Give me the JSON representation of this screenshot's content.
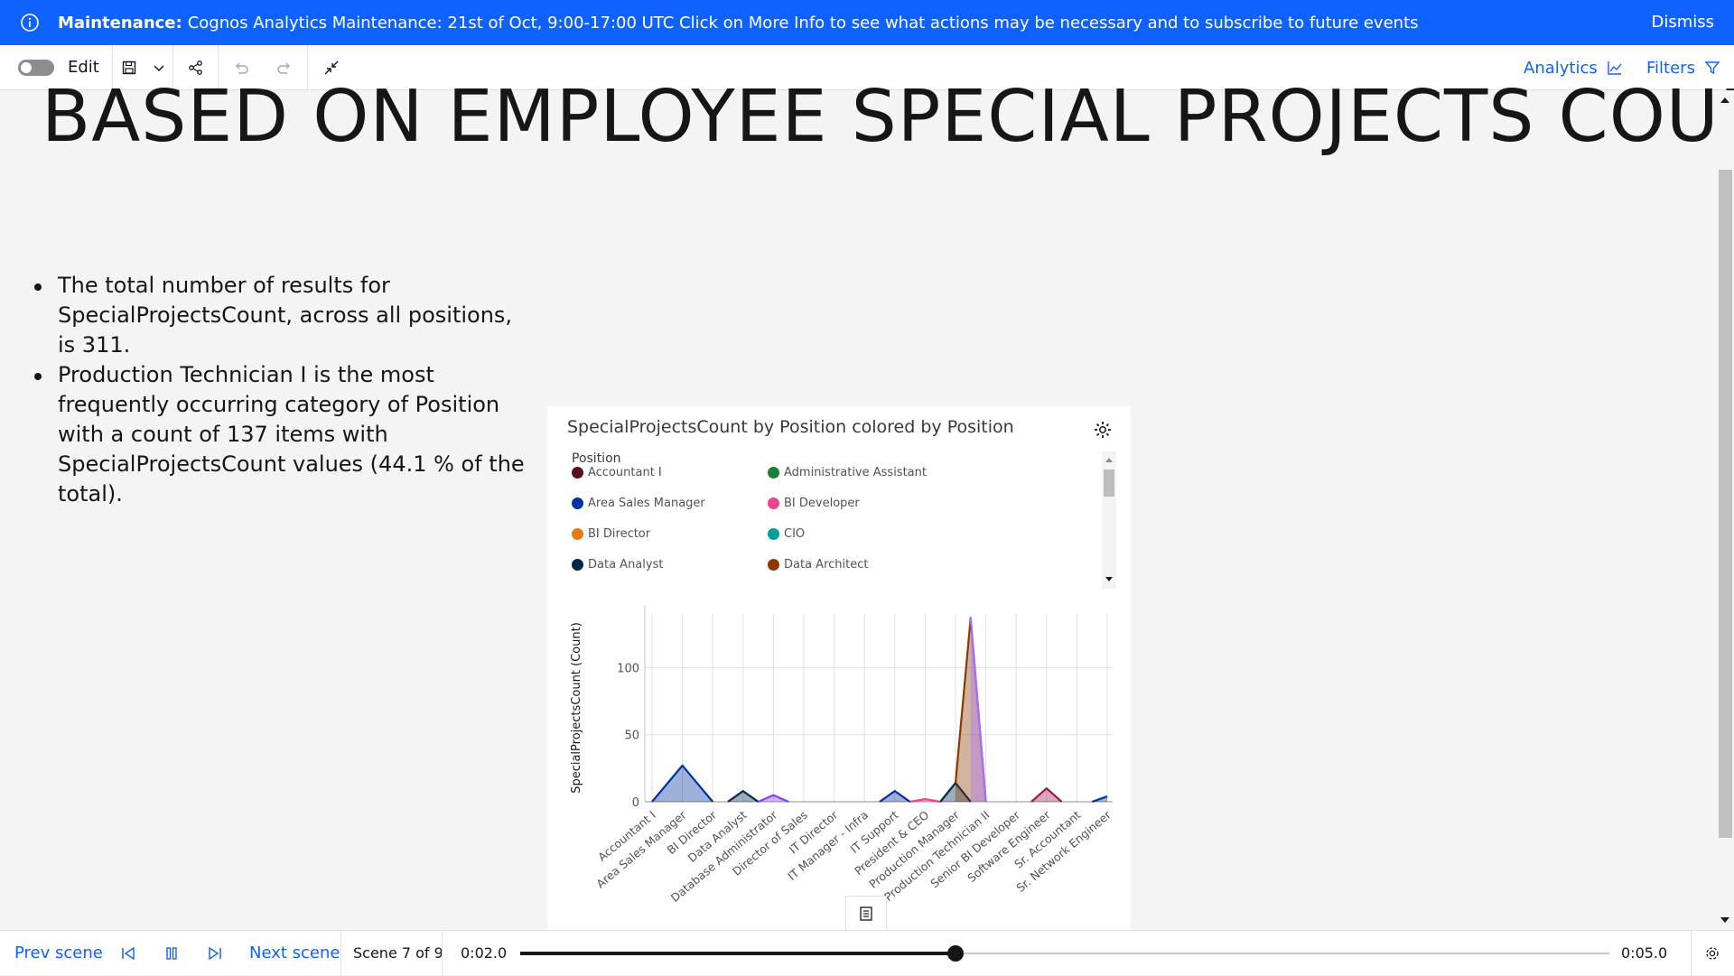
{
  "banner": {
    "label": "Maintenance:",
    "message": "Cognos Analytics Maintenance: 21st of Oct, 9:00-17:00 UTC Click on More Info to see what actions may be necessary and to subscribe to future events",
    "dismiss_label": "Dismiss"
  },
  "toolbar": {
    "edit_label": "Edit",
    "analytics_label": "Analytics",
    "filters_label": "Filters"
  },
  "page": {
    "title": "BASED ON EMPLOYEE SPECIAL PROJECTS COUNT",
    "bullets": [
      "The total number of results for SpecialProjectsCount, across all positions, is 311.",
      "Production Technician I is the most frequently occurring category of Position with a count of 137 items with SpecialProjectsCount values (44.1 % of the total)."
    ]
  },
  "chart_card": {
    "title": "SpecialProjectsCount by Position colored by Position",
    "legend_title": "Position",
    "legend": [
      {
        "label": "Accountant I",
        "color": "#5a0f1e"
      },
      {
        "label": "Administrative Assistant",
        "color": "#198038"
      },
      {
        "label": "Area Sales Manager",
        "color": "#0032a0"
      },
      {
        "label": "BI Developer",
        "color": "#e8458b"
      },
      {
        "label": "BI Director",
        "color": "#e87a14"
      },
      {
        "label": "CIO",
        "color": "#009d9a"
      },
      {
        "label": "Data Analyst",
        "color": "#012749"
      },
      {
        "label": "Data Architect",
        "color": "#8a3800"
      }
    ]
  },
  "chart_data": {
    "type": "area",
    "title": "SpecialProjectsCount by Position colored by Position",
    "xlabel": "",
    "ylabel": "SpecialProjectsCount (Count)",
    "ylim": [
      0,
      140
    ],
    "yticks": [
      0,
      50,
      100
    ],
    "tick_labels": [
      "Accountant I",
      "Area Sales Manager",
      "BI Director",
      "Data Analyst",
      "Database Administrator",
      "Director of Sales",
      "IT Director",
      "IT Manager - Infra",
      "IT Support",
      "President & CEO",
      "Production Manager",
      "Production Technician II",
      "Senior BI Developer",
      "Software Engineer",
      "Sr. Accountant",
      "Sr. Network Engineer"
    ],
    "series": [
      {
        "name": "Area Sales Manager",
        "color": "#0032a0",
        "points": [
          [
            0,
            0
          ],
          [
            1,
            27
          ],
          [
            2,
            0
          ]
        ]
      },
      {
        "name": "Data Analyst",
        "color": "#012749",
        "points": [
          [
            2.5,
            0
          ],
          [
            3,
            8
          ],
          [
            3.5,
            0
          ]
        ]
      },
      {
        "name": "Database Administrator",
        "color": "#8a3ffc",
        "points": [
          [
            3.5,
            0
          ],
          [
            4,
            5
          ],
          [
            4.5,
            0
          ]
        ]
      },
      {
        "name": "IT Support",
        "color": "#002d9c",
        "points": [
          [
            7.5,
            0
          ],
          [
            8,
            8
          ],
          [
            8.5,
            0
          ]
        ]
      },
      {
        "name": "President & CEO",
        "color": "#e8458b",
        "points": [
          [
            8.5,
            0
          ],
          [
            9,
            2
          ],
          [
            9.5,
            0
          ]
        ]
      },
      {
        "name": "Production Manager",
        "color": "#012749",
        "points": [
          [
            9.5,
            0
          ],
          [
            10,
            14
          ],
          [
            10.5,
            0
          ]
        ]
      },
      {
        "name": "Production Technician I",
        "color": "#8a3800",
        "points": [
          [
            10,
            14
          ],
          [
            10.5,
            137
          ],
          [
            11,
            0
          ]
        ]
      },
      {
        "name": "Production Technician II",
        "color": "#a56eff",
        "points": [
          [
            10.5,
            137
          ],
          [
            11,
            0
          ]
        ]
      },
      {
        "name": "Software Engineer",
        "color": "#9f1853",
        "points": [
          [
            12.5,
            0
          ],
          [
            13,
            10
          ],
          [
            13.5,
            0
          ]
        ]
      },
      {
        "name": "Sr. Network Engineer",
        "color": "#0032a0",
        "points": [
          [
            14.5,
            0
          ],
          [
            15,
            4
          ]
        ]
      }
    ]
  },
  "footer": {
    "prev_label": "Prev scene",
    "next_label": "Next scene",
    "scene_label": "Scene 7 of 9",
    "current_time": "0:02.0",
    "total_time": "0:05.0",
    "progress": 0.4
  }
}
